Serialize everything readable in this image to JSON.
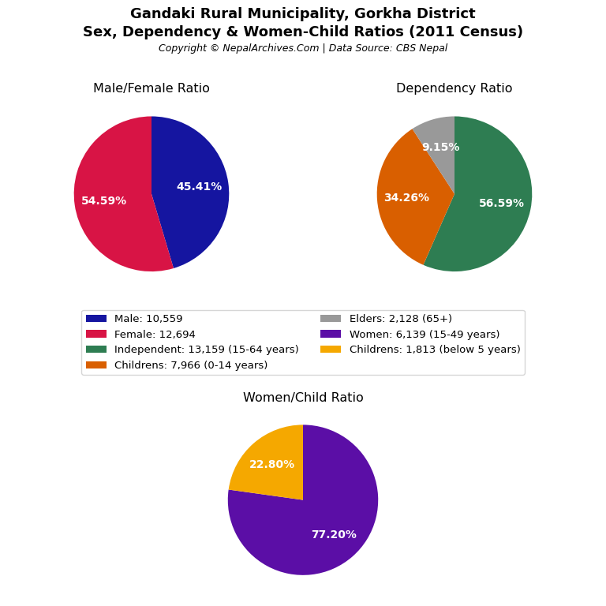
{
  "title": "Gandaki Rural Municipality, Gorkha District",
  "subtitle": "Sex, Dependency & Women-Child Ratios (2011 Census)",
  "annotations": [
    "Copyright © NepalArchives.Com | Data Source: CBS Nepal"
  ],
  "chart_data": [
    {
      "type": "pie",
      "title": "Male/Female Ratio",
      "categories": [
        "Male: 10,559",
        "Female: 12,694"
      ],
      "values": [
        45.41,
        54.59
      ],
      "value_labels": [
        "45.41%",
        "54.59%"
      ],
      "colors": [
        "#1515a0",
        "#d81445"
      ],
      "data_labels": true,
      "legend": "center"
    },
    {
      "type": "pie",
      "title": "Dependency Ratio",
      "categories": [
        "Independent: 13,159 (15-64 years)",
        "Childrens: 7,966 (0-14 years)",
        "Elders: 2,128 (65+)"
      ],
      "values": [
        56.59,
        34.26,
        9.15
      ],
      "value_labels": [
        "56.59%",
        "34.26%",
        "9.15%"
      ],
      "colors": [
        "#2e7d52",
        "#d95f00",
        "#999999"
      ],
      "data_labels": true,
      "legend": "center"
    },
    {
      "type": "pie",
      "title": "Women/Child Ratio",
      "categories": [
        "Women: 6,139 (15-49 years)",
        "Childrens: 1,813 (below 5 years)"
      ],
      "values": [
        77.2,
        22.8
      ],
      "value_labels": [
        "77.20%",
        "22.80%"
      ],
      "colors": [
        "#5b0ea6",
        "#f5a800"
      ],
      "data_labels": true,
      "legend": "center"
    }
  ]
}
